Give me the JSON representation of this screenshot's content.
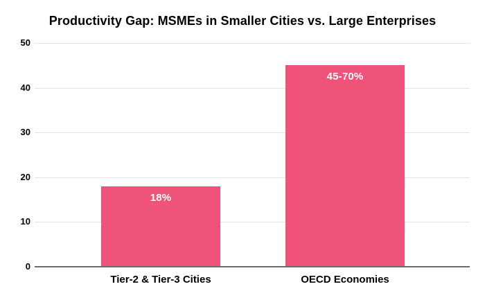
{
  "chart_data": {
    "type": "bar",
    "title": "Productivity Gap: MSMEs in Smaller Cities vs. Large Enterprises",
    "categories": [
      "Tier-2 & Tier-3 Cities",
      "OECD Economies"
    ],
    "values": [
      18,
      45
    ],
    "bar_labels": [
      "18%",
      "45-70%"
    ],
    "yticks": [
      0,
      10,
      20,
      30,
      40,
      50
    ],
    "ylim": [
      0,
      50
    ],
    "xlabel": "",
    "ylabel": "",
    "legend": "none",
    "grid": "horizontal",
    "colors": {
      "bar": "#EF5379",
      "bar_label_text": "#FFFFFF",
      "gridline": "#E3E3E3",
      "axis_line": "#6B6B6B",
      "text": "#000000",
      "background": "#FFFFFF"
    }
  }
}
